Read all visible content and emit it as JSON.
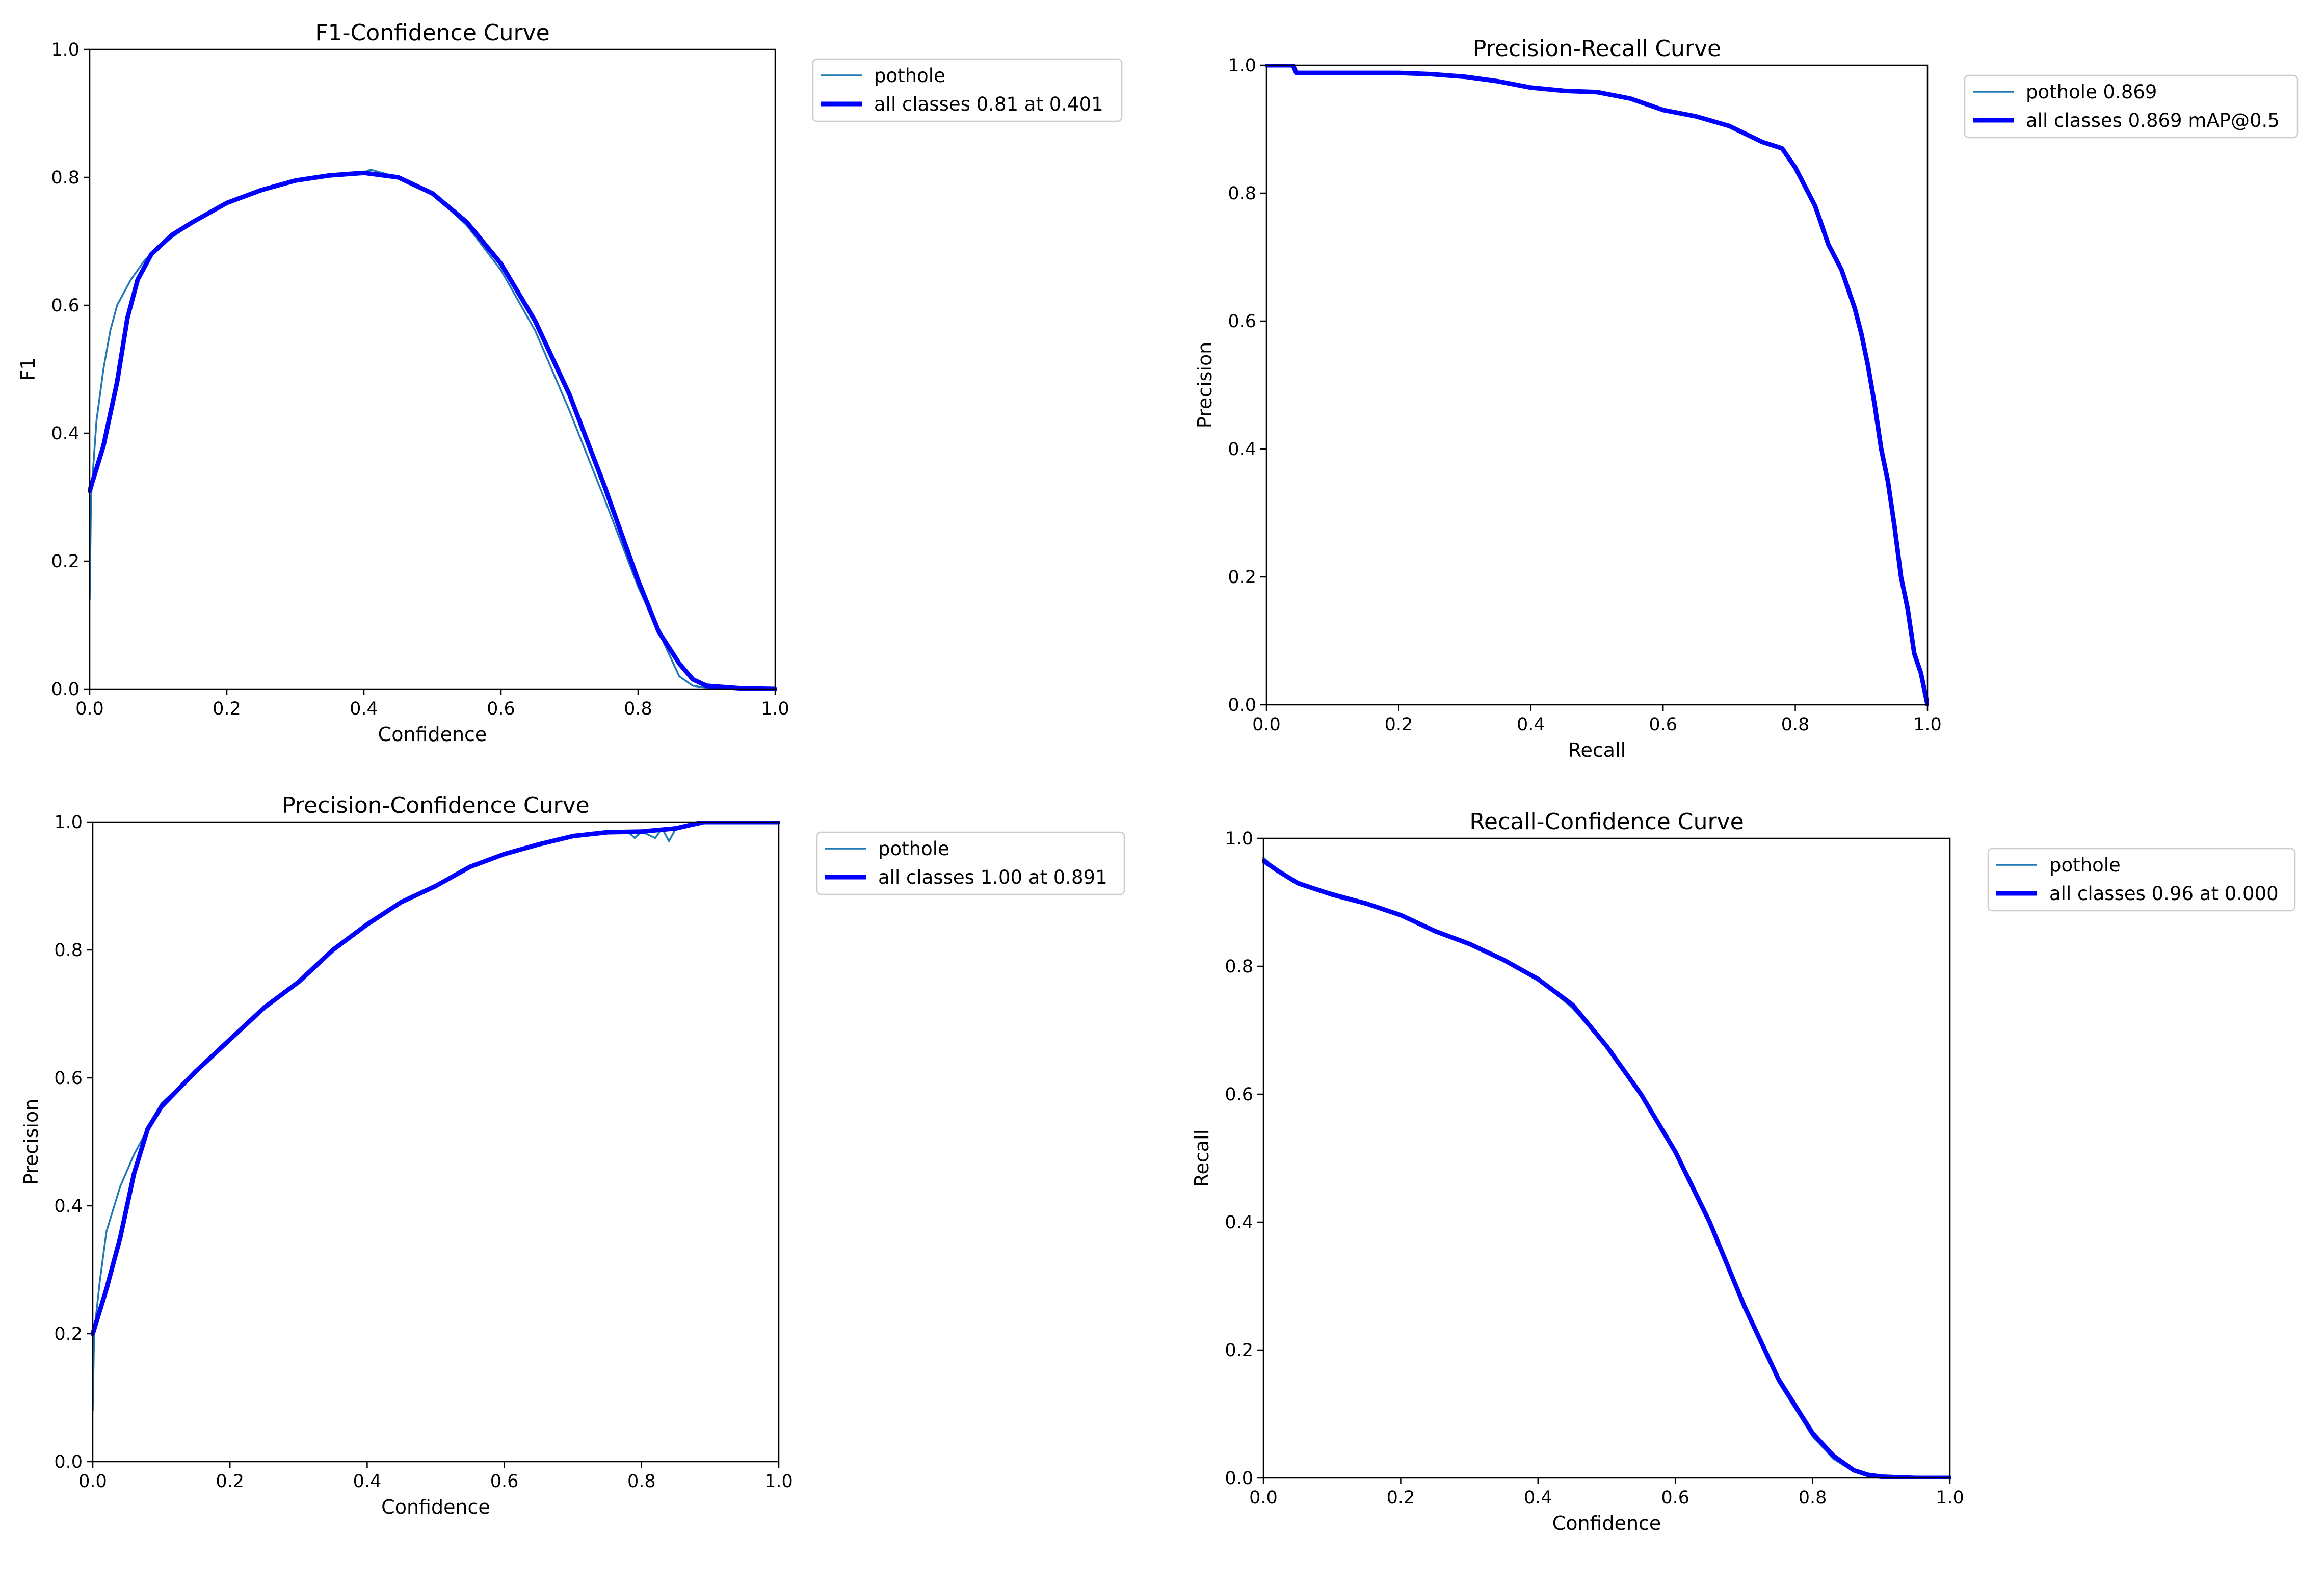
{
  "figure": {
    "colors": {
      "series_thin": "#1f77b4",
      "series_thick": "#0000ff",
      "axes": "#000000",
      "legend_border": "#cccccc"
    }
  },
  "chart_data": [
    {
      "type": "line",
      "title": "F1-Confidence Curve",
      "xlabel": "Confidence",
      "ylabel": "F1",
      "xlim": [
        0,
        1
      ],
      "ylim": [
        0,
        1
      ],
      "xticks": [
        "0.0",
        "0.2",
        "0.4",
        "0.6",
        "0.8",
        "1.0"
      ],
      "yticks": [
        "0.0",
        "0.2",
        "0.4",
        "0.6",
        "0.8",
        "1.0"
      ],
      "grid": false,
      "legend_position": "outside-right-top",
      "series": [
        {
          "name": "pothole",
          "style": "thin",
          "x": [
            0.0,
            0.002,
            0.01,
            0.02,
            0.03,
            0.04,
            0.06,
            0.08,
            0.1,
            0.15,
            0.2,
            0.25,
            0.3,
            0.35,
            0.4,
            0.41,
            0.45,
            0.5,
            0.55,
            0.6,
            0.65,
            0.7,
            0.75,
            0.8,
            0.83,
            0.86,
            0.88,
            0.9,
            0.95,
            1.0
          ],
          "y": [
            0.14,
            0.3,
            0.42,
            0.5,
            0.56,
            0.6,
            0.64,
            0.67,
            0.69,
            0.73,
            0.76,
            0.78,
            0.795,
            0.803,
            0.808,
            0.812,
            0.8,
            0.775,
            0.725,
            0.655,
            0.56,
            0.435,
            0.3,
            0.16,
            0.09,
            0.02,
            0.005,
            0.002,
            0.0,
            0.0
          ]
        },
        {
          "name": "all classes 0.81 at 0.401",
          "style": "thick",
          "x": [
            0.0,
            0.02,
            0.04,
            0.055,
            0.07,
            0.09,
            0.12,
            0.15,
            0.2,
            0.25,
            0.3,
            0.35,
            0.4,
            0.45,
            0.5,
            0.55,
            0.6,
            0.65,
            0.7,
            0.75,
            0.8,
            0.83,
            0.86,
            0.88,
            0.9,
            0.95,
            1.0
          ],
          "y": [
            0.31,
            0.38,
            0.48,
            0.58,
            0.64,
            0.68,
            0.71,
            0.73,
            0.76,
            0.78,
            0.795,
            0.803,
            0.807,
            0.8,
            0.775,
            0.73,
            0.665,
            0.575,
            0.46,
            0.32,
            0.17,
            0.09,
            0.04,
            0.015,
            0.005,
            0.001,
            0.0
          ]
        }
      ]
    },
    {
      "type": "line",
      "title": "Precision-Recall Curve",
      "xlabel": "Recall",
      "ylabel": "Precision",
      "xlim": [
        0,
        1
      ],
      "ylim": [
        0,
        1
      ],
      "xticks": [
        "0.0",
        "0.2",
        "0.4",
        "0.6",
        "0.8",
        "1.0"
      ],
      "yticks": [
        "0.0",
        "0.2",
        "0.4",
        "0.6",
        "0.8",
        "1.0"
      ],
      "grid": false,
      "legend_position": "outside-right-top",
      "series": [
        {
          "name": "pothole 0.869",
          "style": "thin",
          "x": [
            0.0,
            0.04,
            0.045,
            0.1,
            0.2,
            0.25,
            0.3,
            0.35,
            0.4,
            0.45,
            0.5,
            0.55,
            0.6,
            0.65,
            0.7,
            0.75,
            0.78,
            0.8,
            0.83,
            0.85,
            0.87,
            0.89,
            0.9,
            0.91,
            0.92,
            0.93,
            0.94,
            0.95,
            0.96,
            0.97,
            0.98,
            0.99,
            1.0
          ],
          "y": [
            1.0,
            1.0,
            0.988,
            0.988,
            0.988,
            0.986,
            0.982,
            0.975,
            0.965,
            0.96,
            0.958,
            0.948,
            0.93,
            0.92,
            0.905,
            0.88,
            0.87,
            0.84,
            0.78,
            0.72,
            0.68,
            0.62,
            0.58,
            0.53,
            0.47,
            0.4,
            0.35,
            0.28,
            0.2,
            0.15,
            0.08,
            0.05,
            0.0
          ]
        },
        {
          "name": "all classes 0.869 mAP@0.5",
          "style": "thick",
          "x": [
            0.0,
            0.04,
            0.045,
            0.1,
            0.2,
            0.25,
            0.3,
            0.35,
            0.4,
            0.45,
            0.5,
            0.55,
            0.6,
            0.65,
            0.7,
            0.75,
            0.78,
            0.8,
            0.83,
            0.85,
            0.87,
            0.89,
            0.9,
            0.91,
            0.92,
            0.93,
            0.94,
            0.95,
            0.96,
            0.97,
            0.98,
            0.99,
            1.0
          ],
          "y": [
            1.0,
            1.0,
            0.988,
            0.988,
            0.988,
            0.986,
            0.982,
            0.975,
            0.965,
            0.96,
            0.958,
            0.948,
            0.93,
            0.92,
            0.905,
            0.88,
            0.87,
            0.84,
            0.78,
            0.72,
            0.68,
            0.62,
            0.58,
            0.53,
            0.47,
            0.4,
            0.35,
            0.28,
            0.2,
            0.15,
            0.08,
            0.05,
            0.0
          ]
        }
      ]
    },
    {
      "type": "line",
      "title": "Precision-Confidence Curve",
      "xlabel": "Confidence",
      "ylabel": "Precision",
      "xlim": [
        0,
        1
      ],
      "ylim": [
        0,
        1
      ],
      "xticks": [
        "0.0",
        "0.2",
        "0.4",
        "0.6",
        "0.8",
        "1.0"
      ],
      "yticks": [
        "0.0",
        "0.2",
        "0.4",
        "0.6",
        "0.8",
        "1.0"
      ],
      "grid": false,
      "legend_position": "outside-right-top",
      "series": [
        {
          "name": "pothole",
          "style": "thin",
          "x": [
            0.0,
            0.002,
            0.01,
            0.02,
            0.04,
            0.06,
            0.08,
            0.1,
            0.15,
            0.2,
            0.25,
            0.3,
            0.35,
            0.4,
            0.45,
            0.5,
            0.55,
            0.6,
            0.65,
            0.7,
            0.75,
            0.78,
            0.79,
            0.8,
            0.82,
            0.83,
            0.84,
            0.85,
            0.88,
            0.9,
            1.0
          ],
          "y": [
            0.08,
            0.2,
            0.28,
            0.36,
            0.43,
            0.48,
            0.52,
            0.56,
            0.61,
            0.66,
            0.71,
            0.75,
            0.8,
            0.84,
            0.875,
            0.9,
            0.93,
            0.95,
            0.965,
            0.978,
            0.984,
            0.985,
            0.975,
            0.985,
            0.975,
            0.99,
            0.97,
            0.99,
            0.995,
            1.0,
            1.0
          ]
        },
        {
          "name": "all classes 1.00 at 0.891",
          "style": "thick",
          "x": [
            0.0,
            0.02,
            0.04,
            0.06,
            0.08,
            0.1,
            0.15,
            0.2,
            0.25,
            0.3,
            0.35,
            0.4,
            0.45,
            0.5,
            0.55,
            0.6,
            0.65,
            0.7,
            0.75,
            0.8,
            0.85,
            0.89,
            1.0
          ],
          "y": [
            0.2,
            0.27,
            0.35,
            0.45,
            0.52,
            0.555,
            0.61,
            0.66,
            0.71,
            0.75,
            0.8,
            0.84,
            0.875,
            0.9,
            0.93,
            0.95,
            0.965,
            0.978,
            0.984,
            0.985,
            0.99,
            1.0,
            1.0
          ]
        }
      ]
    },
    {
      "type": "line",
      "title": "Recall-Confidence Curve",
      "xlabel": "Confidence",
      "ylabel": "Recall",
      "xlim": [
        0,
        1
      ],
      "ylim": [
        0,
        1
      ],
      "xticks": [
        "0.0",
        "0.2",
        "0.4",
        "0.6",
        "0.8",
        "1.0"
      ],
      "yticks": [
        "0.0",
        "0.2",
        "0.4",
        "0.6",
        "0.8",
        "1.0"
      ],
      "grid": false,
      "legend_position": "outside-right-top",
      "series": [
        {
          "name": "pothole",
          "style": "thin",
          "x": [
            0.0,
            0.02,
            0.05,
            0.1,
            0.15,
            0.2,
            0.25,
            0.3,
            0.35,
            0.4,
            0.45,
            0.5,
            0.55,
            0.6,
            0.65,
            0.7,
            0.75,
            0.8,
            0.83,
            0.86,
            0.88,
            0.9,
            0.95,
            1.0
          ],
          "y": [
            0.97,
            0.95,
            0.93,
            0.915,
            0.9,
            0.88,
            0.855,
            0.835,
            0.81,
            0.78,
            0.735,
            0.675,
            0.6,
            0.51,
            0.4,
            0.27,
            0.15,
            0.065,
            0.03,
            0.01,
            0.004,
            0.002,
            0.0,
            0.0
          ]
        },
        {
          "name": "all classes 0.96 at 0.000",
          "style": "thick",
          "x": [
            0.0,
            0.02,
            0.05,
            0.1,
            0.15,
            0.2,
            0.25,
            0.3,
            0.35,
            0.4,
            0.45,
            0.5,
            0.55,
            0.6,
            0.65,
            0.7,
            0.75,
            0.8,
            0.83,
            0.86,
            0.88,
            0.9,
            0.95,
            1.0
          ],
          "y": [
            0.965,
            0.95,
            0.93,
            0.912,
            0.898,
            0.88,
            0.855,
            0.835,
            0.81,
            0.78,
            0.74,
            0.675,
            0.6,
            0.51,
            0.4,
            0.27,
            0.155,
            0.07,
            0.035,
            0.012,
            0.005,
            0.002,
            0.0,
            0.0
          ]
        }
      ]
    }
  ]
}
